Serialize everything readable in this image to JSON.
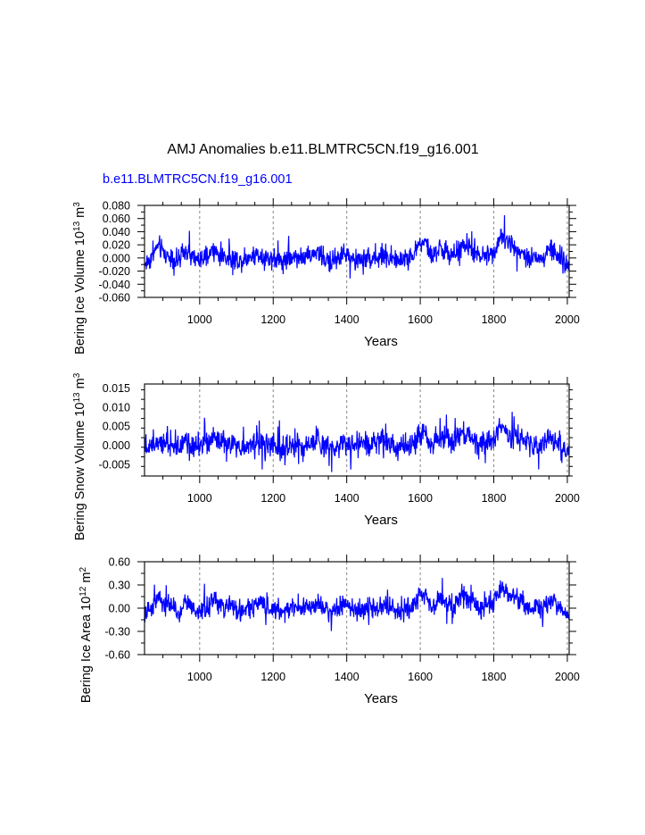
{
  "page": {
    "title": "AMJ Anomalies b.e11.BLMTRC5CN.f19_g16.001",
    "case_label": "b.e11.BLMTRC5CN.f19_g16.001"
  },
  "colors": {
    "series": "#0000ff",
    "axis": "#000000",
    "grid": "#888888",
    "background": "#ffffff"
  },
  "chart_data": [
    {
      "type": "line",
      "name": "ice-volume",
      "ylabel_main": "Bering Ice Volume 10",
      "ylabel_exp": "13",
      "ylabel_unit": " m",
      "ylabel_unit_exp": "3",
      "xlabel": "Years",
      "xlim": [
        850,
        2005
      ],
      "ylim": [
        -0.06,
        0.08
      ],
      "yticks": [
        "-0.060",
        "-0.040",
        "-0.020",
        "0.000",
        "0.020",
        "0.040",
        "0.060",
        "0.080"
      ],
      "ytick_values": [
        -0.06,
        -0.04,
        -0.02,
        0.0,
        0.02,
        0.04,
        0.06,
        0.08
      ],
      "xticks": [
        "1000",
        "1200",
        "1400",
        "1600",
        "1800",
        "2000"
      ],
      "xtick_values": [
        1000,
        1200,
        1400,
        1600,
        1800,
        2000
      ],
      "series_name": "b.e11.BLMTRC5CN.f19_g16.001",
      "noise_amp": 0.013,
      "values": [
        -0.01,
        0.0,
        0.02,
        0.005,
        0.0,
        -0.005,
        0.01,
        0.0,
        -0.005,
        0.0,
        0.01,
        0.005,
        0.0,
        0.0,
        -0.005,
        0.0,
        0.005,
        0.005,
        0.0,
        0.0,
        -0.005,
        0.0,
        0.005,
        0.0,
        0.0,
        0.01,
        0.0,
        -0.005,
        0.0,
        0.005,
        0.0,
        -0.005,
        0.0,
        0.0,
        0.0,
        0.005,
        0.0,
        -0.005,
        0.0,
        0.0,
        0.02,
        0.025,
        0.0,
        0.015,
        0.01,
        0.0,
        0.015,
        0.02,
        0.01,
        0.0,
        0.005,
        0.01,
        0.035,
        0.025,
        0.015,
        0.01,
        0.0,
        0.005,
        -0.005,
        0.015,
        0.01,
        -0.005,
        -0.01
      ]
    },
    {
      "type": "line",
      "name": "snow-volume",
      "ylabel_main": "Bering Snow Volume 10",
      "ylabel_exp": "13",
      "ylabel_unit": " m",
      "ylabel_unit_exp": "3",
      "xlabel": "Years",
      "xlim": [
        850,
        2005
      ],
      "ylim": [
        -0.008,
        0.016
      ],
      "yticks": [
        "-0.005",
        "0.000",
        "0.005",
        "0.010",
        "0.015"
      ],
      "ytick_values": [
        -0.005,
        0.0,
        0.005,
        0.01,
        0.015
      ],
      "xticks": [
        "1000",
        "1200",
        "1400",
        "1600",
        "1800",
        "2000"
      ],
      "xtick_values": [
        1000,
        1200,
        1400,
        1600,
        1800,
        2000
      ],
      "noise_amp": 0.0026,
      "values": [
        -0.001,
        0.0,
        0.002,
        0.001,
        0.0,
        -0.0005,
        0.002,
        0.0,
        -0.0005,
        0.0,
        0.0015,
        0.001,
        0.0,
        0.0,
        -0.001,
        0.0,
        0.0005,
        0.001,
        0.0,
        0.0,
        -0.0005,
        0.0,
        0.0005,
        0.0,
        0.0,
        0.0015,
        0.0,
        -0.0005,
        0.0,
        0.001,
        0.0,
        0.0,
        0.0005,
        0.0,
        0.001,
        0.0015,
        0.0,
        -0.001,
        0.0,
        0.0,
        0.003,
        0.003,
        0.0,
        0.0025,
        0.002,
        0.0,
        0.003,
        0.003,
        0.0015,
        0.0,
        0.001,
        0.0015,
        0.0045,
        0.003,
        0.002,
        0.0015,
        0.0,
        0.0005,
        -0.0005,
        0.002,
        0.001,
        -0.001,
        -0.0015
      ]
    },
    {
      "type": "line",
      "name": "ice-area",
      "ylabel_main": "Bering Ice Area 10",
      "ylabel_exp": "12",
      "ylabel_unit": " m",
      "ylabel_unit_exp": "2",
      "xlabel": "Years",
      "xlim": [
        850,
        2005
      ],
      "ylim": [
        -0.6,
        0.6
      ],
      "yticks": [
        "-0.60",
        "-0.30",
        "0.00",
        "0.30",
        "0.60"
      ],
      "ytick_values": [
        -0.6,
        -0.3,
        0.0,
        0.3,
        0.6
      ],
      "xticks": [
        "1000",
        "1200",
        "1400",
        "1600",
        "1800",
        "2000"
      ],
      "xtick_values": [
        1000,
        1200,
        1400,
        1600,
        1800,
        2000
      ],
      "noise_amp": 0.11,
      "values": [
        -0.1,
        0.0,
        0.15,
        0.05,
        0.0,
        -0.05,
        0.1,
        0.0,
        -0.05,
        0.0,
        0.1,
        0.05,
        0.0,
        0.0,
        -0.05,
        0.0,
        0.05,
        0.05,
        0.0,
        0.0,
        -0.05,
        0.0,
        0.05,
        0.0,
        0.0,
        0.08,
        0.0,
        -0.05,
        0.0,
        0.05,
        0.0,
        -0.05,
        0.0,
        0.0,
        0.0,
        0.05,
        0.0,
        -0.05,
        0.0,
        0.0,
        0.15,
        0.2,
        0.0,
        0.12,
        0.08,
        0.0,
        0.12,
        0.15,
        0.08,
        0.0,
        0.04,
        0.08,
        0.28,
        0.2,
        0.12,
        0.08,
        0.0,
        0.04,
        -0.05,
        0.12,
        0.08,
        -0.05,
        -0.1
      ]
    }
  ]
}
